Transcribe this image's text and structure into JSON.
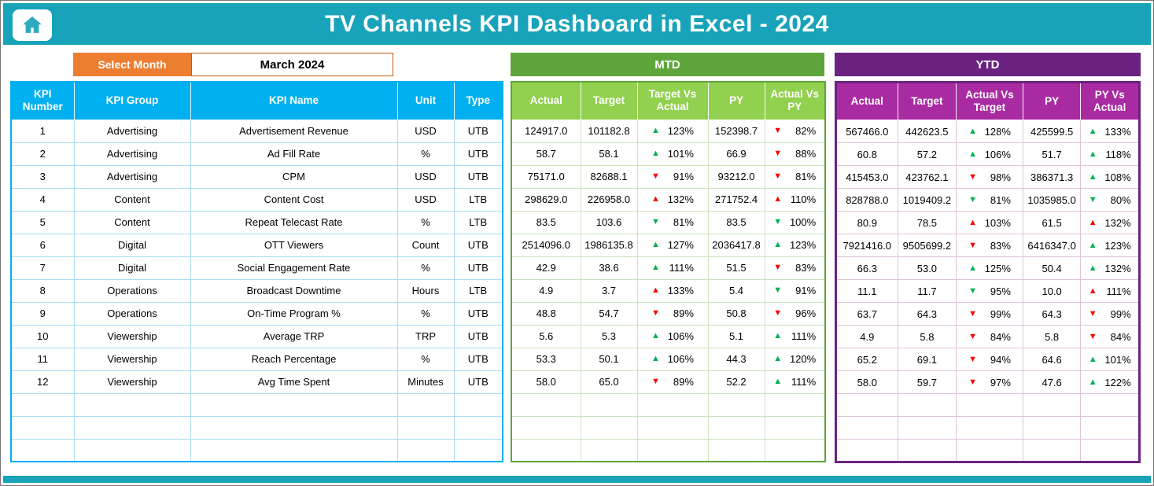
{
  "header": {
    "title": "TV Channels KPI Dashboard in Excel - 2024"
  },
  "month_selector": {
    "label": "Select Month",
    "value": "March 2024"
  },
  "kpi_table": {
    "columns": [
      "KPI Number",
      "KPI Group",
      "KPI Name",
      "Unit",
      "Type"
    ]
  },
  "mtd": {
    "title": "MTD",
    "columns": [
      "Actual",
      "Target",
      "Target Vs Actual",
      "PY",
      "Actual Vs PY"
    ]
  },
  "ytd": {
    "title": "YTD",
    "columns": [
      "Actual",
      "Target",
      "Actual Vs Target",
      "PY",
      "PY Vs Actual"
    ]
  },
  "empty_rows": 3,
  "colors": {
    "teal": "#19A3BA",
    "orange": "#ED7D31",
    "orange_border": "#C55A11",
    "blue": "#00B0F0",
    "green_dark": "#5EA63C",
    "green_light": "#92D050",
    "purple_dark": "#6B2280",
    "magenta": "#A92BA2",
    "arrow_green": "#00B050",
    "arrow_red": "#FF0000"
  },
  "rows": [
    {
      "num": "1",
      "group": "Advertising",
      "name": "Advertisement Revenue",
      "unit": "USD",
      "type": "UTB",
      "mtd": {
        "actual": "124917.0",
        "target": "101182.8",
        "target_vs_actual": {
          "dir": "up",
          "color": "green",
          "pct": "123%"
        },
        "py": "152398.7",
        "actual_vs_py": {
          "dir": "down",
          "color": "red",
          "pct": "82%"
        }
      },
      "ytd": {
        "actual": "567466.0",
        "target": "442623.5",
        "actual_vs_target": {
          "dir": "up",
          "color": "green",
          "pct": "128%"
        },
        "py": "425599.5",
        "py_vs_actual": {
          "dir": "up",
          "color": "green",
          "pct": "133%"
        }
      }
    },
    {
      "num": "2",
      "group": "Advertising",
      "name": "Ad Fill Rate",
      "unit": "%",
      "type": "UTB",
      "mtd": {
        "actual": "58.7",
        "target": "58.1",
        "target_vs_actual": {
          "dir": "up",
          "color": "green",
          "pct": "101%"
        },
        "py": "66.9",
        "actual_vs_py": {
          "dir": "down",
          "color": "red",
          "pct": "88%"
        }
      },
      "ytd": {
        "actual": "60.8",
        "target": "57.2",
        "actual_vs_target": {
          "dir": "up",
          "color": "green",
          "pct": "106%"
        },
        "py": "51.7",
        "py_vs_actual": {
          "dir": "up",
          "color": "green",
          "pct": "118%"
        }
      }
    },
    {
      "num": "3",
      "group": "Advertising",
      "name": "CPM",
      "unit": "USD",
      "type": "UTB",
      "mtd": {
        "actual": "75171.0",
        "target": "82688.1",
        "target_vs_actual": {
          "dir": "down",
          "color": "red",
          "pct": "91%"
        },
        "py": "93212.0",
        "actual_vs_py": {
          "dir": "down",
          "color": "red",
          "pct": "81%"
        }
      },
      "ytd": {
        "actual": "415453.0",
        "target": "423762.1",
        "actual_vs_target": {
          "dir": "down",
          "color": "red",
          "pct": "98%"
        },
        "py": "386371.3",
        "py_vs_actual": {
          "dir": "up",
          "color": "green",
          "pct": "108%"
        }
      }
    },
    {
      "num": "4",
      "group": "Content",
      "name": "Content Cost",
      "unit": "USD",
      "type": "LTB",
      "mtd": {
        "actual": "298629.0",
        "target": "226958.0",
        "target_vs_actual": {
          "dir": "up",
          "color": "red",
          "pct": "132%"
        },
        "py": "271752.4",
        "actual_vs_py": {
          "dir": "up",
          "color": "red",
          "pct": "110%"
        }
      },
      "ytd": {
        "actual": "828788.0",
        "target": "1019409.2",
        "actual_vs_target": {
          "dir": "down",
          "color": "green",
          "pct": "81%"
        },
        "py": "1035985.0",
        "py_vs_actual": {
          "dir": "down",
          "color": "green",
          "pct": "80%"
        }
      }
    },
    {
      "num": "5",
      "group": "Content",
      "name": "Repeat Telecast Rate",
      "unit": "%",
      "type": "LTB",
      "mtd": {
        "actual": "83.5",
        "target": "103.6",
        "target_vs_actual": {
          "dir": "down",
          "color": "green",
          "pct": "81%"
        },
        "py": "83.5",
        "actual_vs_py": {
          "dir": "down",
          "color": "green",
          "pct": "100%"
        }
      },
      "ytd": {
        "actual": "80.9",
        "target": "78.5",
        "actual_vs_target": {
          "dir": "up",
          "color": "red",
          "pct": "103%"
        },
        "py": "61.5",
        "py_vs_actual": {
          "dir": "up",
          "color": "red",
          "pct": "132%"
        }
      }
    },
    {
      "num": "6",
      "group": "Digital",
      "name": "OTT Viewers",
      "unit": "Count",
      "type": "UTB",
      "mtd": {
        "actual": "2514096.0",
        "target": "1986135.8",
        "target_vs_actual": {
          "dir": "up",
          "color": "green",
          "pct": "127%"
        },
        "py": "2036417.8",
        "actual_vs_py": {
          "dir": "up",
          "color": "green",
          "pct": "123%"
        }
      },
      "ytd": {
        "actual": "7921416.0",
        "target": "9505699.2",
        "actual_vs_target": {
          "dir": "down",
          "color": "red",
          "pct": "83%"
        },
        "py": "6416347.0",
        "py_vs_actual": {
          "dir": "up",
          "color": "green",
          "pct": "123%"
        }
      }
    },
    {
      "num": "7",
      "group": "Digital",
      "name": "Social Engagement Rate",
      "unit": "%",
      "type": "UTB",
      "mtd": {
        "actual": "42.9",
        "target": "38.6",
        "target_vs_actual": {
          "dir": "up",
          "color": "green",
          "pct": "111%"
        },
        "py": "51.5",
        "actual_vs_py": {
          "dir": "down",
          "color": "red",
          "pct": "83%"
        }
      },
      "ytd": {
        "actual": "66.3",
        "target": "53.0",
        "actual_vs_target": {
          "dir": "up",
          "color": "green",
          "pct": "125%"
        },
        "py": "50.4",
        "py_vs_actual": {
          "dir": "up",
          "color": "green",
          "pct": "132%"
        }
      }
    },
    {
      "num": "8",
      "group": "Operations",
      "name": "Broadcast Downtime",
      "unit": "Hours",
      "type": "LTB",
      "mtd": {
        "actual": "4.9",
        "target": "3.7",
        "target_vs_actual": {
          "dir": "up",
          "color": "red",
          "pct": "133%"
        },
        "py": "5.4",
        "actual_vs_py": {
          "dir": "down",
          "color": "green",
          "pct": "91%"
        }
      },
      "ytd": {
        "actual": "11.1",
        "target": "11.7",
        "actual_vs_target": {
          "dir": "down",
          "color": "green",
          "pct": "95%"
        },
        "py": "10.0",
        "py_vs_actual": {
          "dir": "up",
          "color": "red",
          "pct": "111%"
        }
      }
    },
    {
      "num": "9",
      "group": "Operations",
      "name": "On-Time Program %",
      "unit": "%",
      "type": "UTB",
      "mtd": {
        "actual": "48.8",
        "target": "54.7",
        "target_vs_actual": {
          "dir": "down",
          "color": "red",
          "pct": "89%"
        },
        "py": "50.8",
        "actual_vs_py": {
          "dir": "down",
          "color": "red",
          "pct": "96%"
        }
      },
      "ytd": {
        "actual": "63.7",
        "target": "64.3",
        "actual_vs_target": {
          "dir": "down",
          "color": "red",
          "pct": "99%"
        },
        "py": "64.3",
        "py_vs_actual": {
          "dir": "down",
          "color": "red",
          "pct": "99%"
        }
      }
    },
    {
      "num": "10",
      "group": "Viewership",
      "name": "Average TRP",
      "unit": "TRP",
      "type": "UTB",
      "mtd": {
        "actual": "5.6",
        "target": "5.3",
        "target_vs_actual": {
          "dir": "up",
          "color": "green",
          "pct": "106%"
        },
        "py": "5.1",
        "actual_vs_py": {
          "dir": "up",
          "color": "green",
          "pct": "111%"
        }
      },
      "ytd": {
        "actual": "4.9",
        "target": "5.8",
        "actual_vs_target": {
          "dir": "down",
          "color": "red",
          "pct": "84%"
        },
        "py": "5.8",
        "py_vs_actual": {
          "dir": "down",
          "color": "red",
          "pct": "84%"
        }
      }
    },
    {
      "num": "11",
      "group": "Viewership",
      "name": "Reach Percentage",
      "unit": "%",
      "type": "UTB",
      "mtd": {
        "actual": "53.3",
        "target": "50.1",
        "target_vs_actual": {
          "dir": "up",
          "color": "green",
          "pct": "106%"
        },
        "py": "44.3",
        "actual_vs_py": {
          "dir": "up",
          "color": "green",
          "pct": "120%"
        }
      },
      "ytd": {
        "actual": "65.2",
        "target": "69.1",
        "actual_vs_target": {
          "dir": "down",
          "color": "red",
          "pct": "94%"
        },
        "py": "64.6",
        "py_vs_actual": {
          "dir": "up",
          "color": "green",
          "pct": "101%"
        }
      }
    },
    {
      "num": "12",
      "group": "Viewership",
      "name": "Avg Time Spent",
      "unit": "Minutes",
      "type": "UTB",
      "mtd": {
        "actual": "58.0",
        "target": "65.0",
        "target_vs_actual": {
          "dir": "down",
          "color": "red",
          "pct": "89%"
        },
        "py": "52.2",
        "actual_vs_py": {
          "dir": "up",
          "color": "green",
          "pct": "111%"
        }
      },
      "ytd": {
        "actual": "58.0",
        "target": "59.7",
        "actual_vs_target": {
          "dir": "down",
          "color": "red",
          "pct": "97%"
        },
        "py": "47.6",
        "py_vs_actual": {
          "dir": "up",
          "color": "green",
          "pct": "122%"
        }
      }
    }
  ]
}
